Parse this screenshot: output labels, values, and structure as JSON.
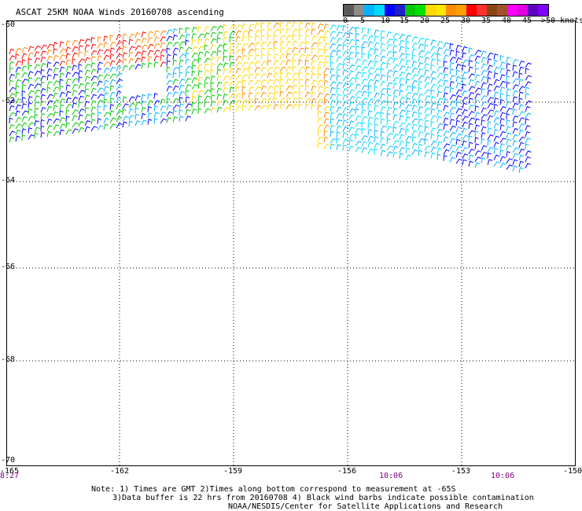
{
  "title": "ASCAT 25KM NOAA Winds 20160708 ascending",
  "legend": {
    "colors": [
      "#5a5a5a",
      "#8c8c8c",
      "#00b4ff",
      "#00dcff",
      "#0000ff",
      "#1f1fc8",
      "#00c800",
      "#00e000",
      "#ffd800",
      "#ffe600",
      "#ff8c00",
      "#ffa000",
      "#ff0000",
      "#ff3030",
      "#8b4513",
      "#a0522d",
      "#ff00ff",
      "#e000e0",
      "#6000c0",
      "#8000ff"
    ],
    "labels": [
      "0",
      "5",
      "10",
      "15",
      "20",
      "25",
      "30",
      "35",
      "40",
      "45",
      ">50 knots"
    ]
  },
  "lat_labels": [
    "-60",
    "-62",
    "-64",
    "-66",
    "-68",
    "-70"
  ],
  "lon_labels": [
    "-165",
    "-162",
    "-159",
    "-156",
    "-153",
    "-150"
  ],
  "time_labels": [
    "8:27",
    "10:06",
    "10:06"
  ],
  "notes": [
    "Note: 1) Times are GMT 2)Times along bottom correspond to measurement at -65S",
    "3)Data buffer is 22 hrs from 20160708 4) Black wind barbs indicate possible contamination",
    "NOAA/NESDIS/Center for Satellite Applications and Research"
  ]
}
